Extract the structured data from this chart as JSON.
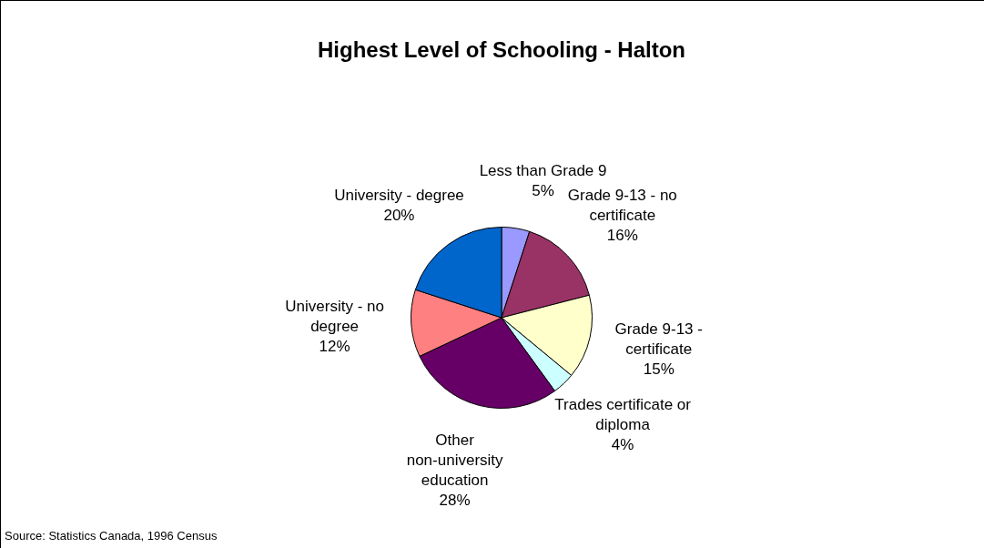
{
  "chart_data": {
    "type": "pie",
    "title": "Highest Level of Schooling - Halton",
    "categories": [
      "Less than Grade 9",
      "Grade 9-13 - no certificate",
      "Grade 9-13 - certificate",
      "Trades certificate or diploma",
      "Other non-university education",
      "University - no degree",
      "University - degree"
    ],
    "values": [
      5,
      16,
      15,
      4,
      28,
      12,
      20
    ],
    "value_labels": [
      "5%",
      "16%",
      "15%",
      "4%",
      "28%",
      "12%",
      "20%"
    ],
    "colors": [
      "#9999ff",
      "#993366",
      "#ffffcc",
      "#ccffff",
      "#660066",
      "#ff8080",
      "#0066cc"
    ],
    "legend": false,
    "annotations": [
      "Source: Statistics Canada, 1996 Census"
    ]
  }
}
